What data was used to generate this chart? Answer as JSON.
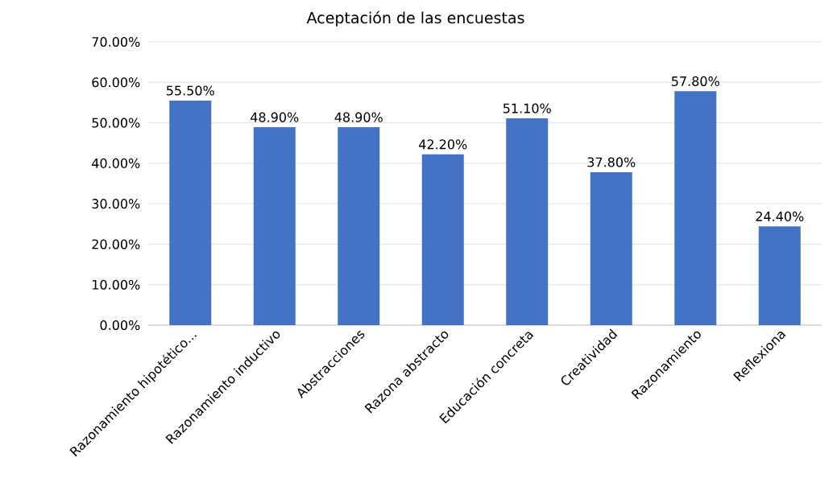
{
  "chart_data": {
    "type": "bar",
    "title": "Aceptación de las encuestas",
    "categories": [
      "Razonamiento hipotético...",
      "Razonamiento inductivo",
      "Abstracciones",
      "Razona abstracto",
      "Educación concreta",
      "Creatividad",
      "Razonamiento",
      "Reflexiona"
    ],
    "values": [
      55.5,
      48.9,
      48.9,
      42.2,
      51.1,
      37.8,
      57.8,
      24.4
    ],
    "value_labels": [
      "55.50%",
      "48.90%",
      "48.90%",
      "42.20%",
      "51.10%",
      "37.80%",
      "57.80%",
      "24.40%"
    ],
    "color": "#4472c4",
    "ylim": [
      0,
      70
    ],
    "yticks": [
      {
        "value": 0,
        "label": "0.00%"
      },
      {
        "value": 10,
        "label": "10.00%"
      },
      {
        "value": 20,
        "label": "20.00%"
      },
      {
        "value": 30,
        "label": "30.00%"
      },
      {
        "value": 40,
        "label": "40.00%"
      },
      {
        "value": 50,
        "label": "50.00%"
      },
      {
        "value": 60,
        "label": "60.00%"
      },
      {
        "value": 70,
        "label": "70.00%"
      }
    ],
    "grid": "y"
  }
}
